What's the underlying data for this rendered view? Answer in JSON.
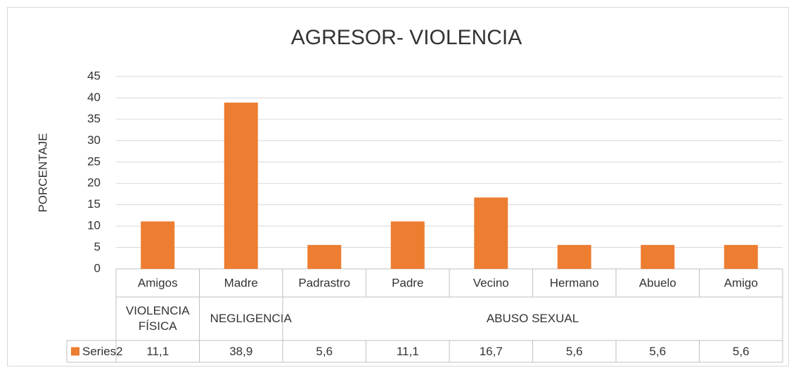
{
  "chart_data": {
    "type": "bar",
    "title": "AGRESOR- VIOLENCIA",
    "y_label": "PORCENTAJE",
    "groups": [
      {
        "label": "VIOLENCIA FÍSICA",
        "categories": [
          "Amigos"
        ]
      },
      {
        "label": "NEGLIGENCIA",
        "categories": [
          "Madre"
        ]
      },
      {
        "label": "ABUSO SEXUAL",
        "categories": [
          "Padrastro",
          "Padre",
          "Vecino",
          "Hermano",
          "Abuelo",
          "Amigo"
        ]
      }
    ],
    "series": [
      {
        "name": "Series2",
        "color": "#ed7d31",
        "values": [
          11.1,
          38.9,
          5.6,
          11.1,
          16.7,
          5.6,
          5.6,
          5.6
        ],
        "value_labels": [
          "11,1",
          "38,9",
          "5,6",
          "11,1",
          "16,7",
          "5,6",
          "5,6",
          "5,6"
        ]
      }
    ],
    "ylim": [
      0,
      45
    ],
    "yticks": [
      0,
      5,
      10,
      15,
      20,
      25,
      30,
      35,
      40,
      45
    ],
    "grid": true,
    "data_table": true
  }
}
